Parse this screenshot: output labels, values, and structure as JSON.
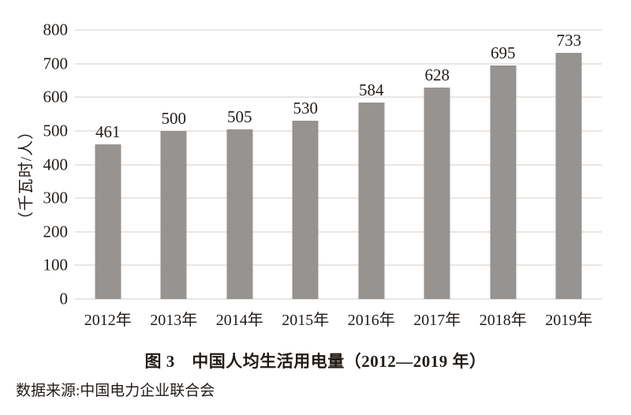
{
  "chart_data": {
    "type": "bar",
    "categories": [
      "2012年",
      "2013年",
      "2014年",
      "2015年",
      "2016年",
      "2017年",
      "2018年",
      "2019年"
    ],
    "values": [
      461,
      500,
      505,
      530,
      584,
      628,
      695,
      733
    ],
    "title": "图 3　中国人均生活用电量（2012—2019 年）",
    "xlabel": "",
    "ylabel": "（千瓦时/人）",
    "ylim": [
      0,
      800
    ],
    "yticks": [
      0,
      100,
      200,
      300,
      400,
      500,
      600,
      700,
      800
    ],
    "grid": true,
    "legend": "none",
    "bar_color": "#969390",
    "gridline_color": "#e9e7e4",
    "text_color": "#221c18",
    "background_color": "#ffffff"
  },
  "caption": "图 3　中国人均生活用电量（2012—2019 年）",
  "source": "数据来源:中国电力企业联合会"
}
